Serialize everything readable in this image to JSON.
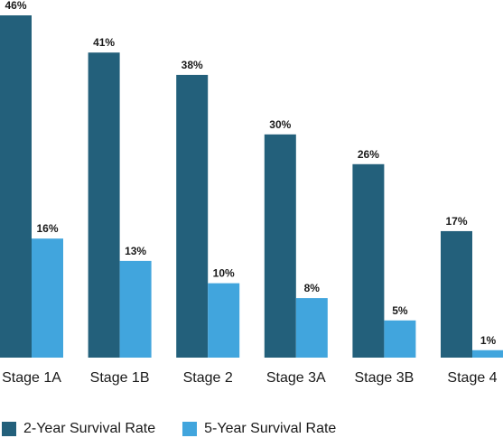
{
  "chart_data": {
    "type": "bar",
    "categories": [
      "Stage 1A",
      "Stage 1B",
      "Stage 2",
      "Stage 3A",
      "Stage 3B",
      "Stage 4"
    ],
    "series": [
      {
        "name": "2-Year Survival Rate",
        "values": [
          46,
          41,
          38,
          30,
          26,
          17
        ],
        "labels": [
          "46%",
          "41%",
          "38%",
          "30%",
          "26%",
          "17%"
        ],
        "color": "#23607b"
      },
      {
        "name": "5-Year Survival Rate",
        "values": [
          16,
          13,
          10,
          8,
          5,
          1
        ],
        "labels": [
          "16%",
          "13%",
          "10%",
          "8%",
          "5%",
          "1%"
        ],
        "color": "#41a5dd"
      }
    ],
    "ylim": [
      0,
      46
    ],
    "grid": false,
    "legend_position": "bottom-left"
  }
}
